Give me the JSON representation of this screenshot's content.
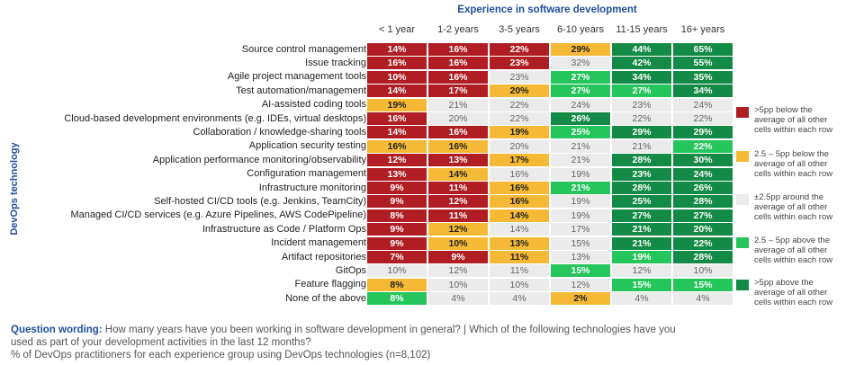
{
  "chart_data": {
    "type": "heatmap",
    "title": "Experience in software development",
    "ylabel": "DevOps technology",
    "columns": [
      "< 1 year",
      "1-2 years",
      "3-5 years",
      "6-10 years",
      "11-15 years",
      "16+ years"
    ],
    "rows": [
      {
        "label": "Source control management",
        "values": [
          14,
          16,
          22,
          29,
          44,
          65
        ],
        "categories": [
          "r",
          "r",
          "r",
          "y",
          "g",
          "g"
        ]
      },
      {
        "label": "Issue tracking",
        "values": [
          16,
          16,
          23,
          32,
          42,
          55
        ],
        "categories": [
          "r",
          "r",
          "r",
          "n",
          "g",
          "g"
        ]
      },
      {
        "label": "Agile project management tools",
        "values": [
          10,
          16,
          23,
          27,
          34,
          35
        ],
        "categories": [
          "r",
          "r",
          "n",
          "lg",
          "g",
          "g"
        ]
      },
      {
        "label": "Test automation/management",
        "values": [
          14,
          17,
          20,
          27,
          27,
          34
        ],
        "categories": [
          "r",
          "r",
          "y",
          "lg",
          "lg",
          "g"
        ]
      },
      {
        "label": "AI-assisted coding tools",
        "values": [
          19,
          21,
          22,
          24,
          23,
          24
        ],
        "categories": [
          "y",
          "n",
          "n",
          "n",
          "n",
          "n"
        ]
      },
      {
        "label": "Cloud-based development environments (e.g. IDEs, virtual desktops)",
        "values": [
          16,
          20,
          22,
          26,
          22,
          22
        ],
        "categories": [
          "r",
          "n",
          "n",
          "g",
          "n",
          "n"
        ]
      },
      {
        "label": "Collaboration / knowledge-sharing tools",
        "values": [
          14,
          16,
          19,
          25,
          29,
          29
        ],
        "categories": [
          "r",
          "r",
          "y",
          "lg",
          "g",
          "g"
        ]
      },
      {
        "label": "Application security testing",
        "values": [
          16,
          16,
          20,
          21,
          21,
          22
        ],
        "categories": [
          "y",
          "y",
          "n",
          "n",
          "n",
          "lg"
        ]
      },
      {
        "label": "Application performance monitoring/observability",
        "values": [
          12,
          13,
          17,
          21,
          28,
          30
        ],
        "categories": [
          "r",
          "r",
          "y",
          "n",
          "g",
          "g"
        ]
      },
      {
        "label": "Configuration management",
        "values": [
          13,
          14,
          16,
          19,
          23,
          24
        ],
        "categories": [
          "r",
          "y",
          "n",
          "n",
          "g",
          "g"
        ]
      },
      {
        "label": "Infrastructure monitoring",
        "values": [
          9,
          11,
          16,
          21,
          28,
          26
        ],
        "categories": [
          "r",
          "r",
          "y",
          "lg",
          "g",
          "g"
        ]
      },
      {
        "label": "Self-hosted CI/CD tools (e.g. Jenkins, TeamCity)",
        "values": [
          9,
          12,
          16,
          19,
          25,
          28
        ],
        "categories": [
          "r",
          "r",
          "y",
          "n",
          "g",
          "g"
        ]
      },
      {
        "label": "Managed CI/CD services (e.g. Azure Pipelines, AWS CodePipeline)",
        "values": [
          8,
          11,
          14,
          19,
          27,
          27
        ],
        "categories": [
          "r",
          "r",
          "y",
          "n",
          "g",
          "g"
        ]
      },
      {
        "label": "Infrastructure as Code / Platform Ops",
        "values": [
          9,
          12,
          14,
          17,
          21,
          20
        ],
        "categories": [
          "r",
          "y",
          "n",
          "n",
          "g",
          "g"
        ]
      },
      {
        "label": "Incident management",
        "values": [
          9,
          10,
          13,
          15,
          21,
          22
        ],
        "categories": [
          "r",
          "y",
          "y",
          "n",
          "g",
          "g"
        ]
      },
      {
        "label": "Artifact repositories",
        "values": [
          7,
          9,
          11,
          13,
          19,
          28
        ],
        "categories": [
          "r",
          "r",
          "y",
          "n",
          "lg",
          "g"
        ]
      },
      {
        "label": "GitOps",
        "values": [
          10,
          12,
          11,
          15,
          12,
          10
        ],
        "categories": [
          "n",
          "n",
          "n",
          "lg",
          "n",
          "n"
        ]
      },
      {
        "label": "Feature flagging",
        "values": [
          8,
          10,
          10,
          12,
          15,
          15
        ],
        "categories": [
          "y",
          "n",
          "n",
          "n",
          "lg",
          "lg"
        ]
      },
      {
        "label": "None of the above",
        "values": [
          8,
          4,
          4,
          2,
          4,
          4
        ],
        "categories": [
          "lg",
          "n",
          "n",
          "y",
          "n",
          "n"
        ]
      }
    ],
    "legend": [
      {
        "key": "r",
        "label": ">5pp below the average of all other cells within each row",
        "color": "#b01e23"
      },
      {
        "key": "y",
        "label": "2.5 – 5pp below the average of all other cells within each row",
        "color": "#f5b935"
      },
      {
        "key": "n",
        "label": "±2.5pp around the average of all other cells within each row",
        "color": "#ebebeb"
      },
      {
        "key": "lg",
        "label": "2.5 – 5pp above the average of all other cells within each row",
        "color": "#24c55a"
      },
      {
        "key": "g",
        "label": ">5pp above the average of all other cells within each row",
        "color": "#138a45"
      }
    ]
  },
  "footnote": {
    "question_label": "Question wording:",
    "question_text": " How many years have you been working in software development in general? |  Which of the following technologies have you",
    "question_text_2": "used as part of your development activities in the last 12 months?",
    "base": "% of DevOps practitioners for each experience group using DevOps technologies (n=8,102)"
  }
}
